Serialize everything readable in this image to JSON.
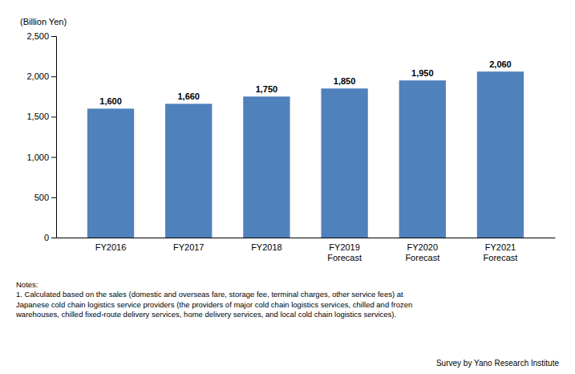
{
  "chart_data": {
    "type": "bar",
    "categories": [
      "FY2016",
      "FY2017",
      "FY2018",
      "FY2019\nForecast",
      "FY2020\nForecast",
      "FY2021\nForecast"
    ],
    "values": [
      1600,
      1660,
      1750,
      1850,
      1950,
      2060
    ],
    "value_labels": [
      "1,600",
      "1,660",
      "1,750",
      "1,850",
      "1,950",
      "2,060"
    ],
    "data_labels": true,
    "color": "#4F81BD",
    "ylabel": "(Billion Yen)",
    "ylim": [
      0,
      2500
    ],
    "yticks": [
      0,
      500,
      {
        "value": 1000,
        "label": "1,000"
      },
      {
        "value": 1500,
        "label": "1,500"
      },
      {
        "value": 2000,
        "label": "2,000"
      },
      {
        "value": 2500,
        "label": "2,500"
      }
    ],
    "grid": false,
    "annotations": [
      "Notes:\n1. Calculated based on the sales (domestic and overseas fare, storage fee, terminal charges, other service fees) at\nJapanese cold chain logistics service providers (the providers of major cold chain logistics services, chilled and frozen\nwarehouses, chilled fixed-route delivery services, home delivery services, and local cold chain logistics services).",
      "Survey by Yano Research Institute"
    ]
  }
}
